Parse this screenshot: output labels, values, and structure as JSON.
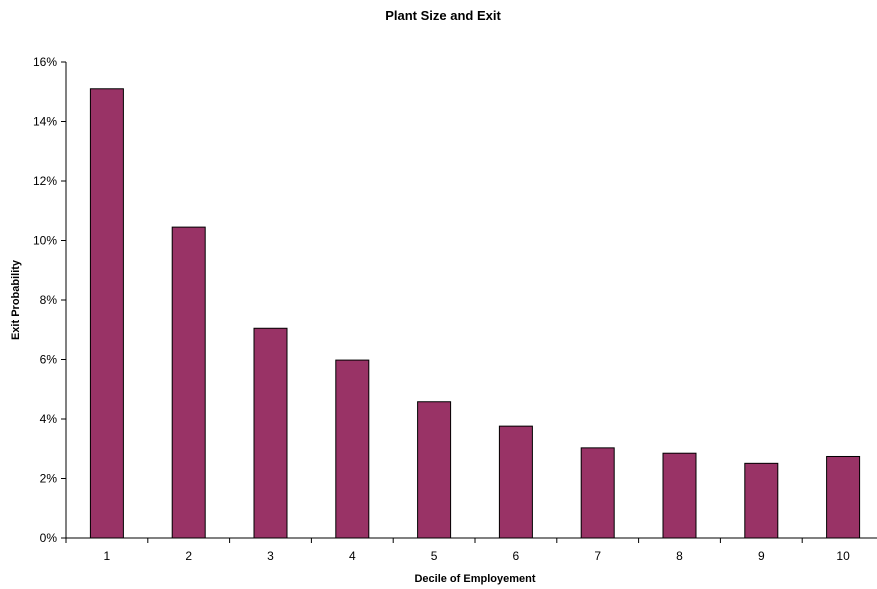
{
  "chart_data": {
    "type": "bar",
    "title": "Plant Size  and Exit",
    "xlabel": "Decile of Employement",
    "ylabel": "Exit Probability",
    "categories": [
      "1",
      "2",
      "3",
      "4",
      "5",
      "6",
      "7",
      "8",
      "9",
      "10"
    ],
    "values": [
      15.1,
      10.45,
      7.05,
      5.98,
      4.58,
      3.76,
      3.03,
      2.85,
      2.51,
      2.74
    ],
    "value_unit": "%",
    "ylim": [
      0,
      16
    ],
    "yticks": [
      "0%",
      "2%",
      "4%",
      "6%",
      "8%",
      "10%",
      "12%",
      "14%",
      "16%"
    ],
    "grid": false,
    "legend": "none",
    "bar_color": "#993366",
    "bar_edge_color": "#000000"
  }
}
